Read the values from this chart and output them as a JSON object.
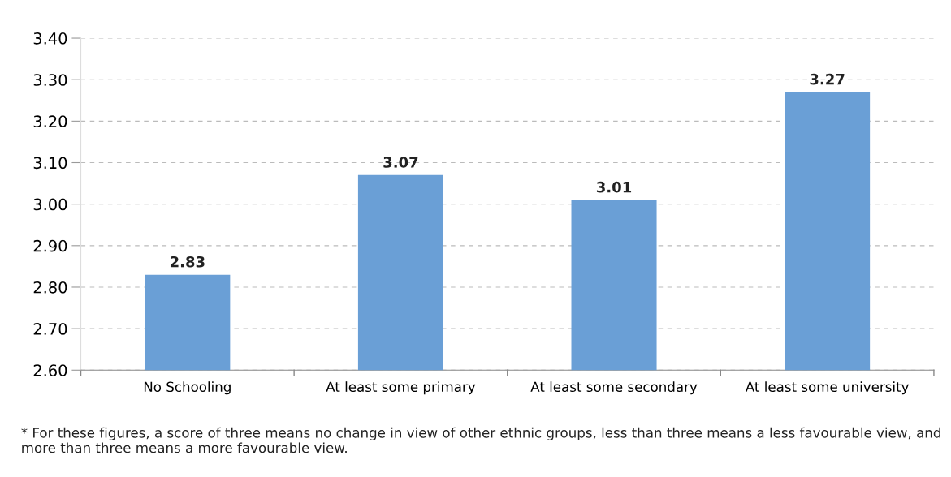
{
  "chart_data": {
    "type": "bar",
    "categories": [
      "No Schooling",
      "At least some primary",
      "At least some secondary",
      "At least some university"
    ],
    "values": [
      2.83,
      3.07,
      3.01,
      3.27
    ],
    "color": "#6a9fd6",
    "ylim": [
      2.6,
      3.4
    ],
    "yticks": [
      {
        "value": 2.6,
        "label": "2.60"
      },
      {
        "value": 2.7,
        "label": "2.70"
      },
      {
        "value": 2.8,
        "label": "2.80"
      },
      {
        "value": 2.9,
        "label": "2.90"
      },
      {
        "value": 3.0,
        "label": "3.00"
      },
      {
        "value": 3.1,
        "label": "3.10"
      },
      {
        "value": 3.2,
        "label": "3.20"
      },
      {
        "value": 3.3,
        "label": "3.30"
      },
      {
        "value": 3.4,
        "label": "3.40"
      }
    ],
    "grid": "y",
    "data_labels": true,
    "annotations": [
      "* For these figures, a score of three means no change in view of other ethnic groups, less than three means a less favourable view, and more than three means a more favourable view."
    ]
  }
}
